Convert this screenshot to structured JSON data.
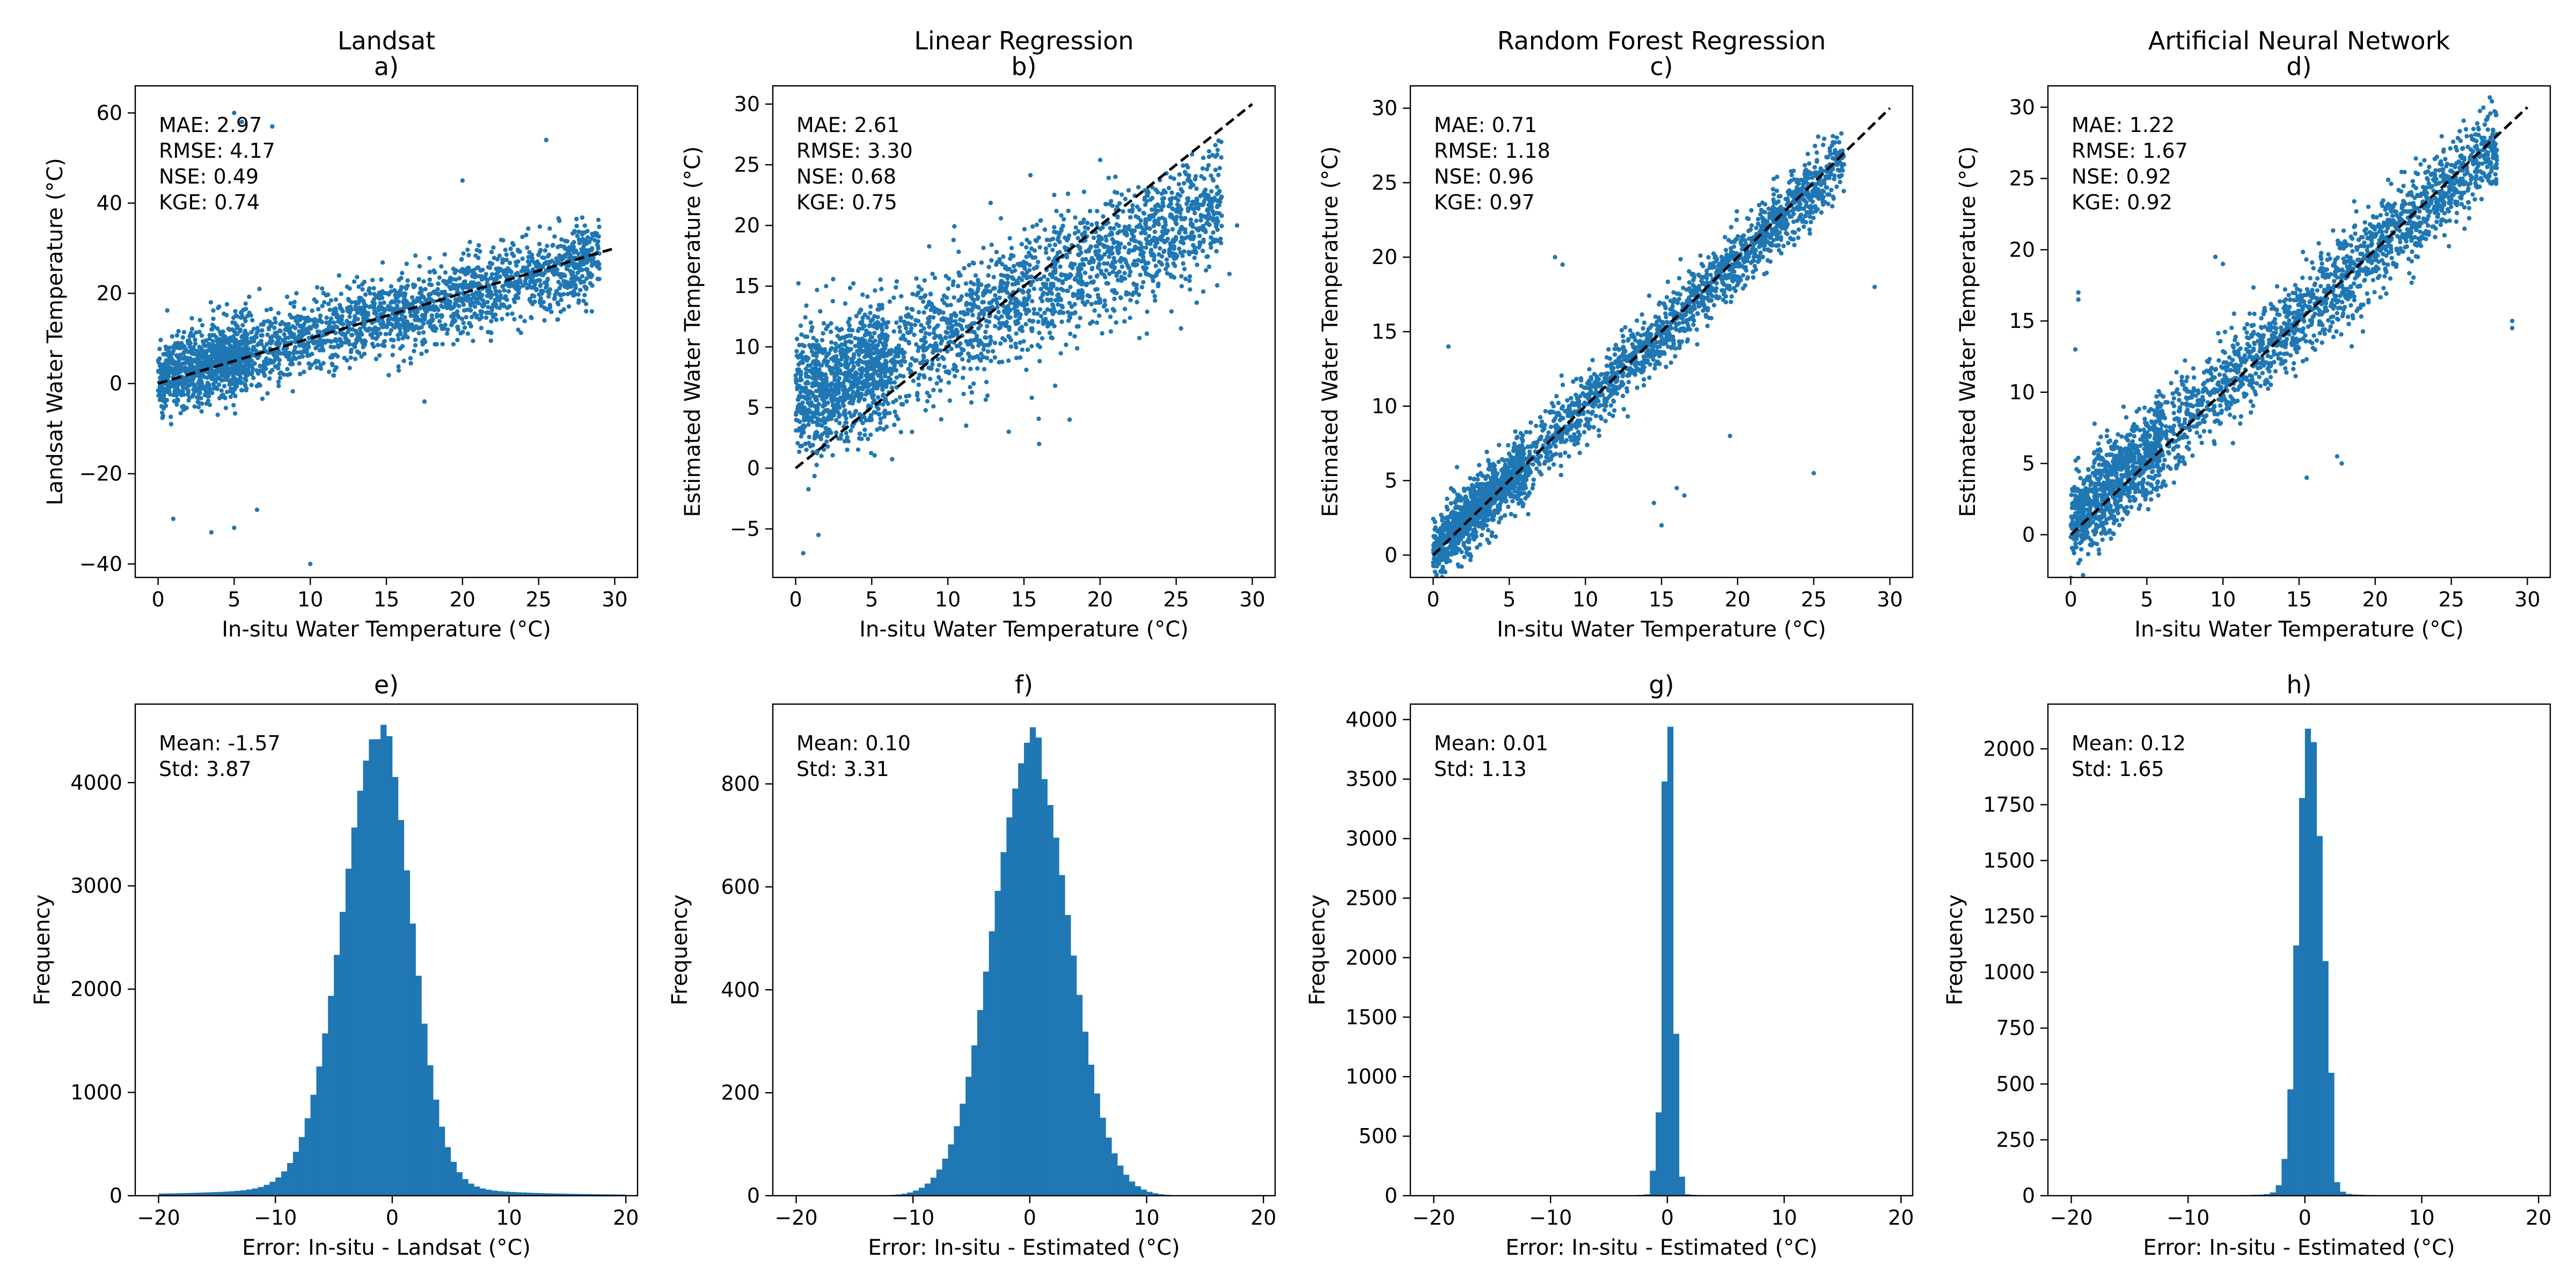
{
  "colors": {
    "points": "#1f77b4",
    "bars": "#1f77b4",
    "reference_line": "#000000"
  },
  "chart_data": [
    {
      "id": "a",
      "type": "scatter",
      "title": "Landsat",
      "panel_label": "a)",
      "xlabel": "In-situ Water Temperature (°C)",
      "ylabel": "Landsat Water Temperature (°C)",
      "xlim": [
        -1.5,
        31.5
      ],
      "ylim": [
        -43,
        66
      ],
      "xticks": [
        0,
        5,
        10,
        15,
        20,
        25,
        30
      ],
      "yticks": [
        -40,
        -20,
        0,
        20,
        40,
        60
      ],
      "reference_line": [
        [
          0,
          0
        ],
        [
          30,
          30
        ]
      ],
      "stats": [
        "MAE: 2.97",
        "RMSE: 4.17",
        "NSE: 0.49",
        "KGE: 0.74"
      ],
      "trend": {
        "slope": 0.92,
        "intercept": 1.0,
        "spread": 4.2,
        "x_range": [
          0,
          29
        ]
      },
      "outliers": [
        [
          5.0,
          60
        ],
        [
          5.5,
          58
        ],
        [
          7.5,
          57
        ],
        [
          25.5,
          54
        ],
        [
          10.0,
          -40
        ],
        [
          5.0,
          -32
        ],
        [
          3.5,
          -33
        ],
        [
          6.5,
          -28
        ],
        [
          1.0,
          -30
        ],
        [
          17.5,
          -4
        ],
        [
          28.5,
          16
        ],
        [
          20.0,
          45
        ]
      ]
    },
    {
      "id": "b",
      "type": "scatter",
      "title": "Linear Regression",
      "panel_label": "b)",
      "xlabel": "In-situ Water Temperature (°C)",
      "ylabel": "Estimated Water Temperature (°C)",
      "xlim": [
        -1.5,
        31.5
      ],
      "ylim": [
        -9,
        31.5
      ],
      "xticks": [
        0,
        5,
        10,
        15,
        20,
        25,
        30
      ],
      "yticks": [
        -5,
        0,
        5,
        10,
        15,
        20,
        25,
        30
      ],
      "reference_line": [
        [
          0,
          0
        ],
        [
          30,
          30
        ]
      ],
      "stats": [
        "MAE: 2.61",
        "RMSE: 3.30",
        "NSE: 0.68",
        "KGE: 0.75"
      ],
      "trend": {
        "slope": 0.58,
        "intercept": 5.5,
        "spread": 2.6,
        "x_range": [
          0,
          28
        ]
      },
      "outliers": [
        [
          0.5,
          -7
        ],
        [
          1.5,
          -5.5
        ],
        [
          2.0,
          15
        ],
        [
          28.5,
          16
        ],
        [
          29.0,
          20
        ],
        [
          1.0,
          12
        ],
        [
          16.0,
          2
        ],
        [
          18.0,
          4
        ],
        [
          14.0,
          3
        ]
      ]
    },
    {
      "id": "c",
      "type": "scatter",
      "title": "Random Forest Regression",
      "panel_label": "c)",
      "xlabel": "In-situ Water Temperature (°C)",
      "ylabel": "Estimated Water Temperature (°C)",
      "xlim": [
        -1.5,
        31.5
      ],
      "ylim": [
        -1.5,
        31.5
      ],
      "xticks": [
        0,
        5,
        10,
        15,
        20,
        25,
        30
      ],
      "yticks": [
        0,
        5,
        10,
        15,
        20,
        25,
        30
      ],
      "reference_line": [
        [
          0,
          0
        ],
        [
          30,
          30
        ]
      ],
      "stats": [
        "MAE: 0.71",
        "RMSE: 1.18",
        "NSE: 0.96",
        "KGE: 0.97"
      ],
      "trend": {
        "slope": 0.98,
        "intercept": 0.2,
        "spread": 1.1,
        "x_range": [
          0,
          27
        ]
      },
      "outliers": [
        [
          8.0,
          20
        ],
        [
          8.5,
          19.5
        ],
        [
          1.0,
          14
        ],
        [
          16.5,
          4
        ],
        [
          16.0,
          4.5
        ],
        [
          25.0,
          5.5
        ],
        [
          29.0,
          18
        ],
        [
          15.0,
          2
        ],
        [
          14.5,
          3.5
        ],
        [
          19.5,
          8
        ],
        [
          25.5,
          23
        ]
      ]
    },
    {
      "id": "d",
      "type": "scatter",
      "title": "Artificial Neural Network",
      "panel_label": "d)",
      "xlabel": "In-situ Water Temperature (°C)",
      "ylabel": "Estimated Water Temperature (°C)",
      "xlim": [
        -1.5,
        31.5
      ],
      "ylim": [
        -3,
        31.5
      ],
      "xticks": [
        0,
        5,
        10,
        15,
        20,
        25,
        30
      ],
      "yticks": [
        0,
        5,
        10,
        15,
        20,
        25,
        30
      ],
      "reference_line": [
        [
          0,
          0
        ],
        [
          30,
          30
        ]
      ],
      "stats": [
        "MAE: 1.22",
        "RMSE: 1.67",
        "NSE: 0.92",
        "KGE: 0.92"
      ],
      "trend": {
        "slope": 0.95,
        "intercept": 0.9,
        "spread": 1.6,
        "x_range": [
          0,
          28
        ]
      },
      "outliers": [
        [
          0.5,
          17
        ],
        [
          0.5,
          16.5
        ],
        [
          0.3,
          13
        ],
        [
          9.5,
          19.5
        ],
        [
          10.0,
          19.0
        ],
        [
          29.0,
          14.5
        ],
        [
          29.0,
          15
        ],
        [
          15.5,
          4
        ],
        [
          17.5,
          5.5
        ],
        [
          17.8,
          5
        ],
        [
          0.5,
          -2
        ]
      ]
    },
    {
      "id": "e",
      "type": "bar",
      "title": "",
      "panel_label": "e)",
      "xlabel": "Error: In-situ - Landsat (°C)",
      "ylabel": "Frequency",
      "xlim": [
        -22,
        21
      ],
      "ylim": [
        0,
        4760
      ],
      "xticks": [
        -20,
        -10,
        0,
        10,
        20
      ],
      "yticks": [
        0,
        1000,
        2000,
        3000,
        4000
      ],
      "stats": [
        "Mean: -1.57",
        "Std: 3.87"
      ],
      "bin_range": [
        -20,
        20
      ],
      "bin_width": 0.5,
      "shape": {
        "peak": 4540,
        "center": -1.0,
        "sigma_left": 3.2,
        "sigma_right": 2.6,
        "tail": 0.06
      },
      "bin_overrides": {
        "-1.0": 4560,
        "-1.5": 4420,
        "-0.5": 4450
      }
    },
    {
      "id": "f",
      "type": "bar",
      "title": "",
      "panel_label": "f)",
      "xlabel": "Error: In-situ - Estimated (°C)",
      "ylabel": "Frequency",
      "xlim": [
        -22,
        21
      ],
      "ylim": [
        0,
        955
      ],
      "xticks": [
        -20,
        -10,
        0,
        10,
        20
      ],
      "yticks": [
        0,
        200,
        400,
        600,
        800
      ],
      "stats": [
        "Mean: 0.10",
        "Std: 3.31"
      ],
      "bin_range": [
        -20,
        20
      ],
      "bin_width": 0.5,
      "shape": {
        "peak": 860,
        "center": 0.1,
        "sigma_left": 3.3,
        "sigma_right": 3.3,
        "tail": 0.0
      },
      "bin_overrides": {
        "-0.5": 880,
        "0.0": 910,
        "0.5": 890,
        "-1.0": 840
      }
    },
    {
      "id": "g",
      "type": "bar",
      "title": "",
      "panel_label": "g)",
      "xlabel": "Error: In-situ - Estimated (°C)",
      "ylabel": "Frequency",
      "xlim": [
        -22,
        21
      ],
      "ylim": [
        0,
        4130
      ],
      "xticks": [
        -20,
        -10,
        0,
        10,
        20
      ],
      "yticks": [
        0,
        500,
        1000,
        1500,
        2000,
        2500,
        3000,
        3500,
        4000
      ],
      "stats": [
        "Mean: 0.01",
        "Std: 1.13"
      ],
      "bin_range": [
        -20,
        20
      ],
      "bin_width": 0.5,
      "shape": {
        "peak": 3900,
        "center": 0.0,
        "sigma_left": 0.42,
        "sigma_right": 0.42,
        "tail": 0.02
      },
      "bin_overrides": {
        "-0.5": 3480,
        "0.0": 3940,
        "0.5": 1360,
        "-1.0": 700,
        "1.0": 160,
        "-1.5": 210
      }
    },
    {
      "id": "h",
      "type": "bar",
      "title": "",
      "panel_label": "h)",
      "xlabel": "Error: In-situ - Estimated (°C)",
      "ylabel": "Frequency",
      "xlim": [
        -22,
        21
      ],
      "ylim": [
        0,
        2200
      ],
      "xticks": [
        -20,
        -10,
        0,
        10,
        20
      ],
      "yticks": [
        0,
        250,
        500,
        750,
        1000,
        1250,
        1500,
        1750,
        2000
      ],
      "stats": [
        "Mean: 0.12",
        "Std: 1.65"
      ],
      "bin_range": [
        -20,
        20
      ],
      "bin_width": 0.5,
      "shape": {
        "peak": 2050,
        "center": 0.3,
        "sigma_left": 0.9,
        "sigma_right": 0.9,
        "tail": 0.02
      },
      "bin_overrides": {
        "0.0": 2090,
        "0.5": 2030,
        "1.0": 1610,
        "1.5": 1050,
        "-0.5": 1780,
        "-1.0": 1120,
        "2.0": 550
      }
    }
  ]
}
